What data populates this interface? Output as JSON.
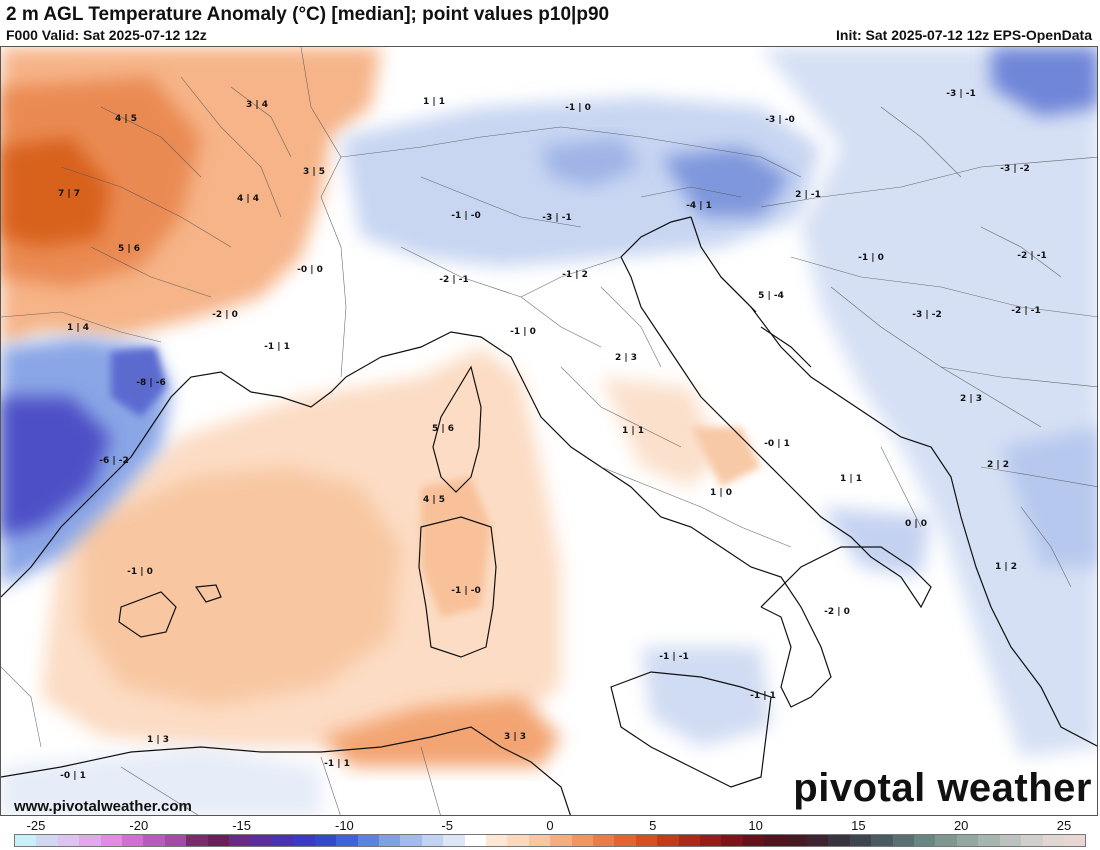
{
  "header": {
    "title": "2 m AGL Temperature Anomaly (°C) [median]; point values p10|p90",
    "valid": "F000 Valid: Sat 2025-07-12 12z",
    "init": "Init: Sat 2025-07-12 12z EPS-OpenData"
  },
  "footer": {
    "site": "www.pivotalweather.com",
    "brand": "pivotal weather"
  },
  "point_values": [
    {
      "label": "4 | 5"
    },
    {
      "label": "3 | 4"
    },
    {
      "label": "1 | 1"
    },
    {
      "label": "-1 | 0"
    },
    {
      "label": "-3 | -0"
    },
    {
      "label": "-3 | -1"
    },
    {
      "label": "7 | 7"
    },
    {
      "label": "4 | 4"
    },
    {
      "label": "3 | 5"
    },
    {
      "label": "-3 | -2"
    },
    {
      "label": "-4 | 1"
    },
    {
      "label": "2 | -1"
    },
    {
      "label": "-1 | -0"
    },
    {
      "label": "-3 | -1"
    },
    {
      "label": "5 | 6"
    },
    {
      "label": "-0 | 0"
    },
    {
      "label": "-1 | 2"
    },
    {
      "label": "-1 | 0"
    },
    {
      "label": "-2 | -1"
    },
    {
      "label": "-2 | -1"
    },
    {
      "label": "5 | -4"
    },
    {
      "label": "-2 | 0"
    },
    {
      "label": "-3 | -2"
    },
    {
      "label": "-2 | -1"
    },
    {
      "label": "1 | 4"
    },
    {
      "label": "-1 | 0"
    },
    {
      "label": "-1 | 1"
    },
    {
      "label": "2 | 3"
    },
    {
      "label": "-8 | -6"
    },
    {
      "label": "2 | 3"
    },
    {
      "label": "5 | 6"
    },
    {
      "label": "1 | 1"
    },
    {
      "label": "-0 | 1"
    },
    {
      "label": "-6 | -2"
    },
    {
      "label": "2 | 2"
    },
    {
      "label": "1 | 1"
    },
    {
      "label": "4 | 5"
    },
    {
      "label": "1 | 0"
    },
    {
      "label": "0 | 0"
    },
    {
      "label": "1 | 2"
    },
    {
      "label": "-1 | 0"
    },
    {
      "label": "-1 | -0"
    },
    {
      "label": "-2 | 0"
    },
    {
      "label": "-1 | -1"
    },
    {
      "label": "-1 | 1"
    },
    {
      "label": "1 | 3"
    },
    {
      "label": "3 | 3"
    },
    {
      "label": "-0 | 1"
    },
    {
      "label": "-1 | 1"
    }
  ],
  "colorbar": {
    "ticks": [
      "-25",
      "-20",
      "-15",
      "-10",
      "-5",
      "0",
      "5",
      "10",
      "15",
      "20",
      "25"
    ],
    "colors": [
      "#c8f0f8",
      "#d2d8f2",
      "#dcc4f0",
      "#e2a8ec",
      "#e48ae4",
      "#d36fd4",
      "#b85ac0",
      "#a54aa8",
      "#7b2a6a",
      "#6a1f5a",
      "#6a2a8a",
      "#5a2e9e",
      "#4a32b0",
      "#3a3ac4",
      "#3448cc",
      "#3d63d6",
      "#5a84de",
      "#7ea1e3",
      "#a2bbea",
      "#c2d3f1",
      "#dce6f7",
      "#ffffff",
      "#fde8d8",
      "#fcd8bd",
      "#fbc69f",
      "#f8ae7c",
      "#f2955f",
      "#ea7c45",
      "#e0652e",
      "#d4501e",
      "#c23c17",
      "#ac2b16",
      "#961e18",
      "#7e1419",
      "#66101c",
      "#54121e",
      "#461a22",
      "#3e2430",
      "#3a3440",
      "#3e4450",
      "#4a5a60",
      "#587070",
      "#6a8680",
      "#7e9890",
      "#94a8a0",
      "#a8b6b0",
      "#bcc2bf",
      "#d0cfcc",
      "#e0d6d2",
      "#e8d6d4"
    ]
  }
}
